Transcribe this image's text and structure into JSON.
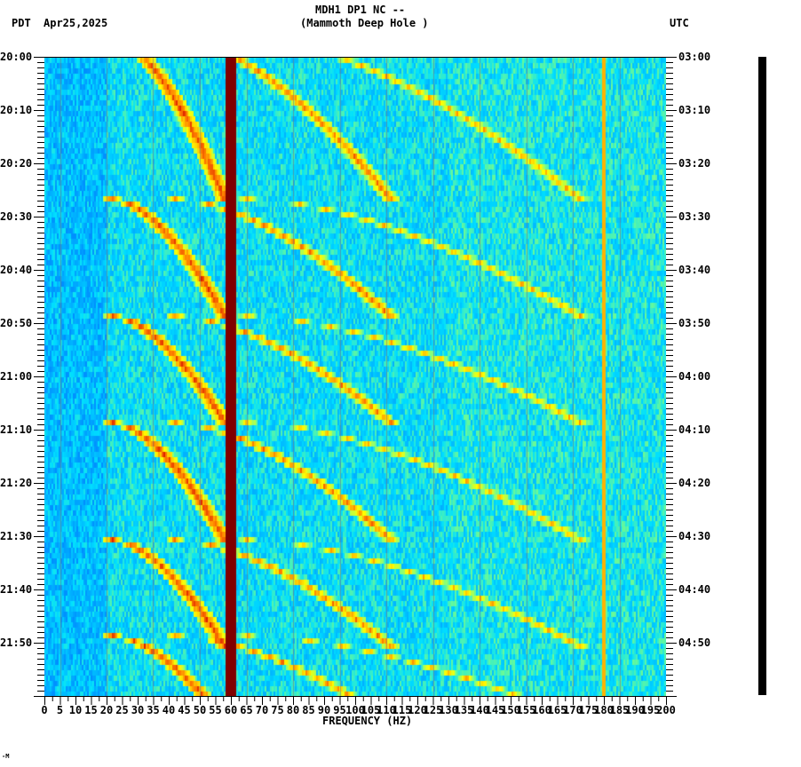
{
  "header": {
    "station": "MDH1 DP1 NC --",
    "location": "(Mammoth Deep Hole )",
    "left_tz": "PDT",
    "date": "Apr25,2025",
    "right_tz": "UTC"
  },
  "footer": {
    "mark": "-M"
  },
  "chart_data": {
    "type": "heatmap",
    "title": "MDH1 DP1 NC -- (Mammoth Deep Hole )",
    "subtitle": "Apr25,2025",
    "xlabel": "FREQUENCY (HZ)",
    "ylabel_left": "PDT",
    "ylabel_right": "UTC",
    "xlim": [
      0,
      200
    ],
    "x_ticks": [
      0,
      5,
      10,
      15,
      20,
      25,
      30,
      35,
      40,
      45,
      50,
      55,
      60,
      65,
      70,
      75,
      80,
      85,
      90,
      95,
      100,
      105,
      110,
      115,
      120,
      125,
      130,
      135,
      140,
      145,
      150,
      155,
      160,
      165,
      170,
      175,
      180,
      185,
      190,
      195,
      200
    ],
    "y_ticks_left": [
      "20:00",
      "20:10",
      "20:20",
      "20:30",
      "20:40",
      "20:50",
      "21:00",
      "21:10",
      "21:20",
      "21:30",
      "21:40",
      "21:50"
    ],
    "y_ticks_right": [
      "03:00",
      "03:10",
      "03:20",
      "03:30",
      "03:40",
      "03:50",
      "04:00",
      "04:10",
      "04:20",
      "04:30",
      "04:40",
      "04:50"
    ],
    "time_range_pdt": [
      "20:00",
      "22:00"
    ],
    "time_range_utc": [
      "03:00",
      "05:00"
    ],
    "colormap": [
      "#0000c8",
      "#0050ff",
      "#00a0ff",
      "#00e0ff",
      "#80ff80",
      "#ffff00",
      "#ff8000",
      "#d00000",
      "#800000"
    ],
    "features": [
      {
        "type": "constant_line",
        "freq_hz": 60,
        "intensity": "max",
        "color": "#8b0000"
      },
      {
        "type": "constant_line",
        "freq_hz": 180,
        "intensity": "medium"
      },
      {
        "type": "gliding_harmonics",
        "description": "repeating upward-sweeping harmonic tremor bands, ~20 min period, fundamental from ~22 Hz to ~55 Hz, harmonics up to ~130 Hz"
      }
    ],
    "background_level": "blue/cyan noise, lower below 20 Hz",
    "grid": false,
    "legend": "none"
  }
}
